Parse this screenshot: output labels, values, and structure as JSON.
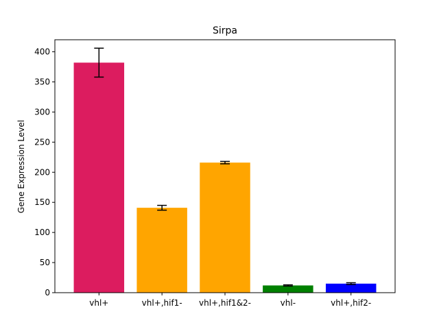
{
  "chart_data": {
    "type": "bar",
    "title": "Sirpa",
    "xlabel": "",
    "ylabel": "Gene Expression Level",
    "ylim": [
      0,
      420
    ],
    "yticks": [
      0,
      50,
      100,
      150,
      200,
      250,
      300,
      350,
      400
    ],
    "grid": false,
    "categories": [
      "vhl+",
      "vhl+,hif1-",
      "vhl+,hif1&2-",
      "vhl-",
      "vhl+,hif2-"
    ],
    "values": [
      382,
      141,
      216,
      12,
      15
    ],
    "errors": [
      24,
      4,
      2,
      1,
      1.5
    ],
    "colors": [
      "#DC1C5F",
      "#FFA500",
      "#FFA500",
      "#008000",
      "#0000FF"
    ]
  }
}
